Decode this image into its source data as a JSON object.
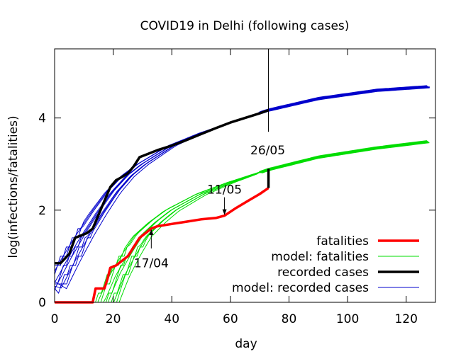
{
  "chart_data": {
    "type": "line",
    "title": "COVID19 in Delhi (following cases)",
    "xlabel": "day",
    "ylabel": "log(infections/fatalities)",
    "xlim": [
      0,
      130
    ],
    "ylim": [
      0,
      5.5
    ],
    "xticks": [
      0,
      20,
      40,
      60,
      80,
      100,
      120
    ],
    "yticks": [
      0,
      2,
      4
    ],
    "grid": false,
    "legend_position": "bottom-right",
    "series": [
      {
        "name": "fatalities",
        "color": "#ff0000",
        "style": "thick",
        "x": [
          0,
          13,
          14,
          17,
          18,
          19,
          21,
          23,
          25,
          27,
          29,
          31,
          33,
          35,
          40,
          45,
          50,
          55,
          58,
          62,
          66,
          70,
          73
        ],
        "y": [
          0,
          0,
          0.3,
          0.3,
          0.5,
          0.75,
          0.8,
          0.9,
          1.0,
          1.2,
          1.4,
          1.5,
          1.6,
          1.65,
          1.7,
          1.75,
          1.8,
          1.83,
          1.88,
          2.05,
          2.2,
          2.35,
          2.48
        ]
      },
      {
        "name": "model: fatalities",
        "color": "#00dd00",
        "style": "thin-ensemble",
        "ensemble_size": 10,
        "x": [
          18,
          22,
          26,
          30,
          35,
          40,
          50,
          60,
          73,
          90,
          110,
          128
        ],
        "y": [
          0.0,
          0.6,
          1.05,
          1.45,
          1.75,
          2.0,
          2.35,
          2.6,
          2.88,
          3.15,
          3.35,
          3.49
        ]
      },
      {
        "name": "recorded cases",
        "color": "#000000",
        "style": "thick",
        "x": [
          0,
          2,
          5,
          7,
          9,
          11,
          13,
          15,
          17,
          19,
          21,
          23,
          25,
          27,
          29,
          31,
          35,
          40,
          45,
          50,
          55,
          60,
          65,
          70,
          73
        ],
        "y": [
          0.85,
          0.85,
          1.05,
          1.4,
          1.45,
          1.5,
          1.6,
          1.9,
          2.2,
          2.5,
          2.65,
          2.72,
          2.8,
          2.95,
          3.15,
          3.2,
          3.3,
          3.4,
          3.52,
          3.65,
          3.78,
          3.9,
          4.0,
          4.1,
          4.17
        ]
      },
      {
        "name": "model: recorded cases",
        "color": "#0000cc",
        "style": "thin-ensemble",
        "ensemble_size": 10,
        "x": [
          0,
          5,
          10,
          15,
          20,
          25,
          30,
          40,
          50,
          60,
          73,
          90,
          110,
          128
        ],
        "y": [
          0.3,
          0.9,
          1.45,
          1.95,
          2.4,
          2.75,
          3.0,
          3.4,
          3.67,
          3.9,
          4.17,
          4.42,
          4.6,
          4.68
        ]
      }
    ],
    "annotations": [
      {
        "label": "17/04",
        "day": 33,
        "value": 1.6,
        "arrow": "up",
        "label_value": 0.85
      },
      {
        "label": "11/05",
        "day": 58,
        "value": 1.88,
        "arrow": "down",
        "label_value": 2.45
      },
      {
        "label": "26/05",
        "day": 73,
        "line_from": 5.5,
        "line_to": 3.7,
        "label_value": 3.3,
        "bar_from": 2.48,
        "bar_to": 2.9
      }
    ]
  }
}
